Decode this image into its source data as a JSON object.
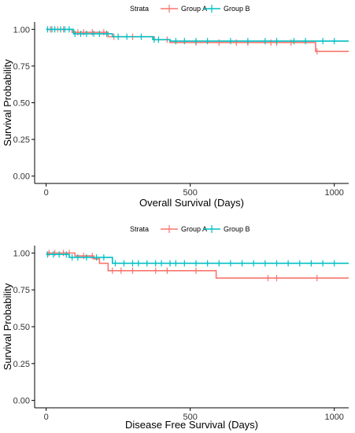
{
  "chart_data": [
    {
      "type": "line",
      "subtype": "kaplan-meier step",
      "legend_title": "Strata",
      "legend_position": "top",
      "xlabel": "Overall Survival (Days)",
      "ylabel": "Survival Probability",
      "xlim": [
        -40,
        1050
      ],
      "ylim": [
        -0.05,
        1.05
      ],
      "xticks": [
        "0",
        "500",
        "1000"
      ],
      "yticks": [
        "0.00",
        "0.25",
        "0.50",
        "0.75",
        "1.00"
      ],
      "grid": false,
      "series": [
        {
          "name": "Group A",
          "color": "#F8766D",
          "steps": [
            [
              0,
              1.0
            ],
            [
              90,
              0.98
            ],
            [
              215,
              0.95
            ],
            [
              375,
              0.93
            ],
            [
              430,
              0.91
            ],
            [
              935,
              0.85
            ],
            [
              1050,
              0.85
            ]
          ],
          "censored_x": [
            15,
            40,
            60,
            110,
            130,
            160,
            200,
            235,
            300,
            420,
            520,
            600,
            660,
            700,
            780,
            800,
            850,
            940
          ]
        },
        {
          "name": "Group B",
          "color": "#00BFC4",
          "steps": [
            [
              0,
              1.0
            ],
            [
              95,
              0.97
            ],
            [
              230,
              0.95
            ],
            [
              370,
              0.93
            ],
            [
              430,
              0.92
            ],
            [
              1050,
              0.92
            ]
          ],
          "censored_x": [
            5,
            20,
            30,
            50,
            65,
            80,
            100,
            120,
            140,
            165,
            185,
            210,
            250,
            280,
            330,
            375,
            390,
            450,
            480,
            520,
            560,
            640,
            700,
            760,
            800,
            860,
            900,
            960,
            1000
          ]
        }
      ]
    },
    {
      "type": "line",
      "subtype": "kaplan-meier step",
      "legend_title": "Strata",
      "legend_position": "top",
      "xlabel": "Disease Free Survival (Days)",
      "ylabel": "Survival Probability",
      "xlim": [
        -40,
        1050
      ],
      "ylim": [
        -0.05,
        1.05
      ],
      "xticks": [
        "0",
        "500",
        "1000"
      ],
      "yticks": [
        "0.00",
        "0.25",
        "0.50",
        "0.75",
        "1.00"
      ],
      "grid": false,
      "series": [
        {
          "name": "Group A",
          "color": "#F8766D",
          "steps": [
            [
              0,
              1.0
            ],
            [
              100,
              0.98
            ],
            [
              165,
              0.96
            ],
            [
              185,
              0.93
            ],
            [
              215,
              0.88
            ],
            [
              590,
              0.83
            ],
            [
              1050,
              0.83
            ]
          ],
          "censored_x": [
            10,
            30,
            60,
            80,
            130,
            160,
            230,
            260,
            300,
            380,
            420,
            520,
            770,
            800,
            940
          ]
        },
        {
          "name": "Group B",
          "color": "#00BFC4",
          "steps": [
            [
              0,
              0.99
            ],
            [
              80,
              0.97
            ],
            [
              230,
              0.93
            ],
            [
              1050,
              0.93
            ]
          ],
          "censored_x": [
            5,
            25,
            45,
            70,
            90,
            110,
            140,
            175,
            200,
            240,
            270,
            300,
            320,
            350,
            380,
            400,
            430,
            450,
            480,
            520,
            560,
            600,
            640,
            680,
            720,
            760,
            800,
            840,
            880,
            920,
            960,
            1000
          ]
        }
      ]
    }
  ]
}
